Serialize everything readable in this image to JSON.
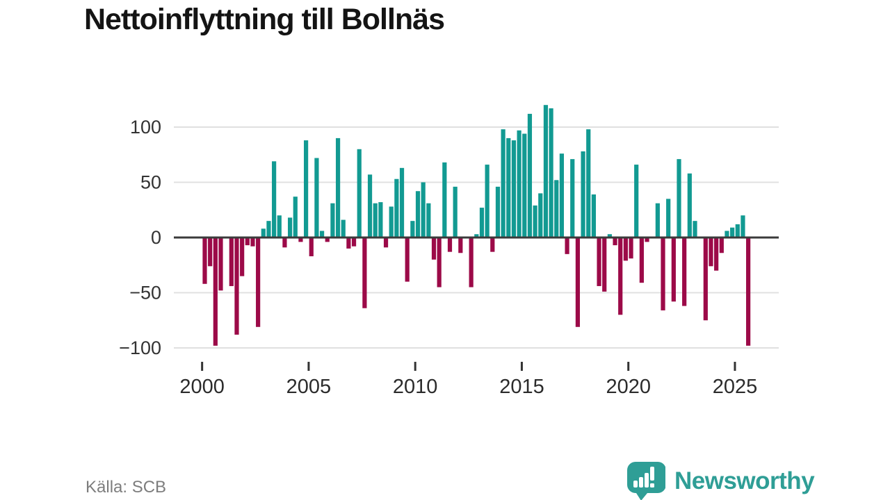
{
  "title": "Nettoinflyttning till Bollnäs",
  "source": "Källa: SCB",
  "logo": {
    "text": "Newsworthy",
    "icon": "speech-bubble-bar-chart-icon",
    "color": "#2f9e96"
  },
  "chart_data": {
    "type": "bar",
    "title": "Nettoinflyttning till Bollnäs",
    "xlabel": "",
    "ylabel": "",
    "frequency": "quarterly",
    "period_start": "2000 Q1",
    "period_end": "2025 Q3",
    "values": [
      -42,
      -26,
      -98,
      -48,
      0,
      -44,
      -88,
      -35,
      -7,
      -8,
      -81,
      8,
      15,
      69,
      20,
      -9,
      18,
      37,
      -4,
      88,
      -17,
      72,
      6,
      -4,
      31,
      90,
      16,
      -10,
      -8,
      80,
      -64,
      57,
      31,
      32,
      -9,
      28,
      53,
      63,
      -40,
      15,
      42,
      50,
      31,
      -20,
      -45,
      68,
      -13,
      46,
      -14,
      0,
      -45,
      3,
      27,
      66,
      -13,
      46,
      98,
      90,
      88,
      97,
      94,
      112,
      29,
      40,
      120,
      117,
      52,
      76,
      -15,
      71,
      -81,
      78,
      98,
      39,
      -44,
      -49,
      3,
      -7,
      -70,
      -21,
      -19,
      66,
      -41,
      -4,
      0,
      31,
      -66,
      35,
      -58,
      71,
      -62,
      58,
      15,
      0,
      -75,
      -26,
      -30,
      -14,
      6,
      9,
      12,
      20,
      -98
    ],
    "x_tick_years": [
      2000,
      2005,
      2010,
      2015,
      2020,
      2025
    ],
    "y_ticks": [
      100,
      50,
      0,
      -50,
      -100
    ],
    "y_tick_labels": [
      "100",
      "50",
      "0",
      "−50",
      "−100"
    ],
    "ylim": [
      -115,
      125
    ],
    "grid": true,
    "legend": false,
    "colors": {
      "positive": "#129a92",
      "negative": "#9c0a48",
      "gridline": "#e0e0e0",
      "zero_axis": "#3b3b3b",
      "tick": "#333333",
      "tick_label": "#2b2b2b",
      "y_label": "#333333"
    }
  }
}
